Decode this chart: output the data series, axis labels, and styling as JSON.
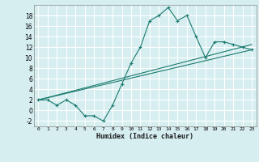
{
  "title": "",
  "xlabel": "Humidex (Indice chaleur)",
  "ylabel": "",
  "bg_color": "#d6eef0",
  "line_color": "#1a7a6e",
  "grid_color": "#ffffff",
  "xlim": [
    -0.5,
    23.5
  ],
  "ylim": [
    -3,
    20
  ],
  "xticks": [
    0,
    1,
    2,
    3,
    4,
    5,
    6,
    7,
    8,
    9,
    10,
    11,
    12,
    13,
    14,
    15,
    16,
    17,
    18,
    19,
    20,
    21,
    22,
    23
  ],
  "yticks": [
    -2,
    0,
    2,
    4,
    6,
    8,
    10,
    12,
    14,
    16,
    18
  ],
  "series": [
    {
      "x": [
        0,
        1,
        2,
        3,
        4,
        5,
        6,
        7,
        8,
        9,
        10,
        11,
        12,
        13,
        14,
        15,
        16,
        17,
        18,
        19,
        20,
        21,
        22,
        23
      ],
      "y": [
        2,
        2,
        1,
        2,
        1,
        -1,
        -1,
        -2,
        1,
        5,
        9,
        12,
        17,
        18,
        19.5,
        17,
        18,
        14,
        10,
        13,
        13,
        12.5,
        12,
        11.5
      ],
      "marker": true
    },
    {
      "x": [
        0,
        23
      ],
      "y": [
        2,
        11.5
      ],
      "marker": false
    },
    {
      "x": [
        0,
        23
      ],
      "y": [
        2,
        12.5
      ],
      "marker": false
    }
  ]
}
